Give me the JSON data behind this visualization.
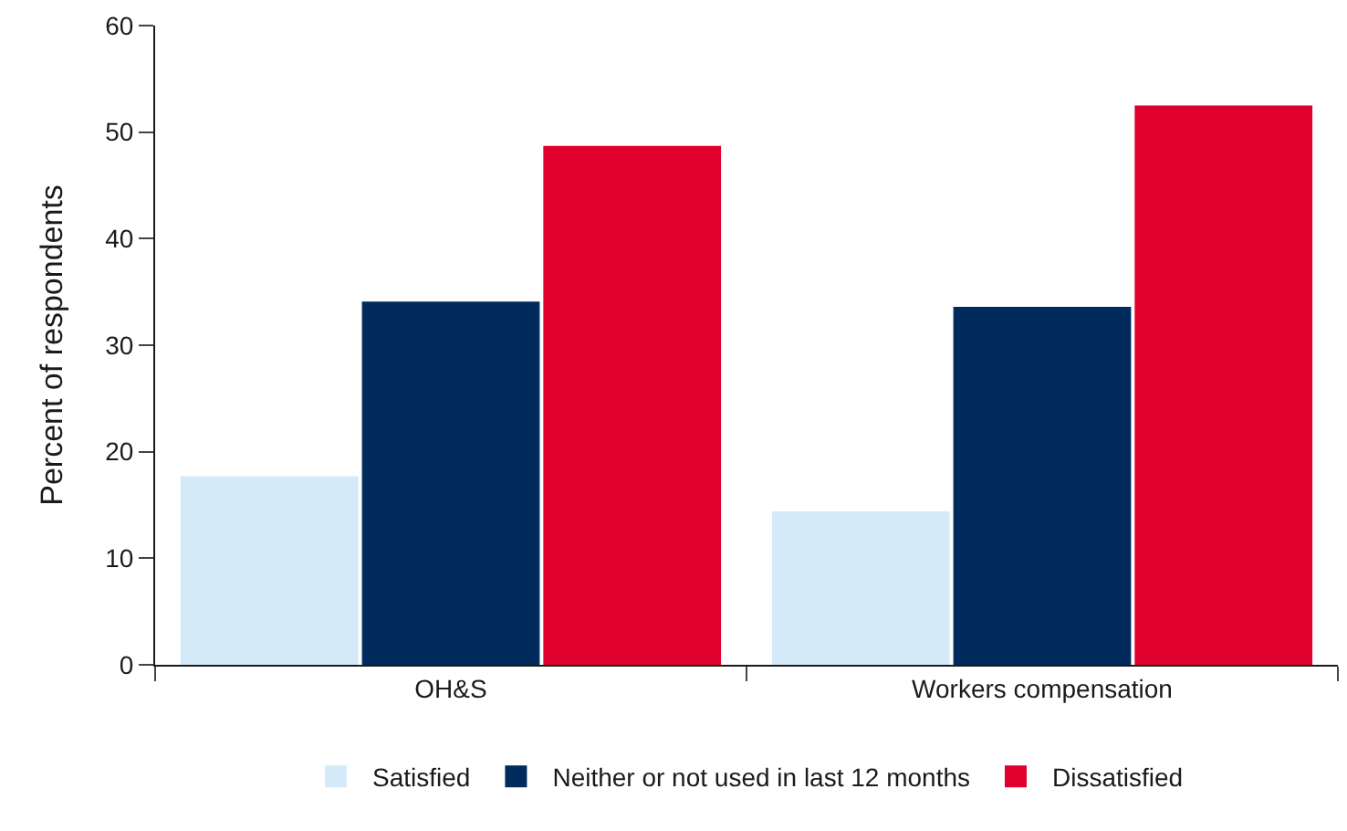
{
  "chart_data": {
    "type": "bar",
    "ylabel": "Percent of respondents",
    "categories": [
      "OH&S",
      "Workers compensation"
    ],
    "series": [
      {
        "name": "Satisfied",
        "color": "#d5eaf8",
        "values": [
          17.7,
          14.4
        ]
      },
      {
        "name": "Neither or not used in last 12 months",
        "color": "#002b5c",
        "values": [
          34.1,
          33.6
        ]
      },
      {
        "name": "Dissatisfied",
        "color": "#e0002d",
        "values": [
          48.7,
          52.5
        ]
      }
    ],
    "ylim": [
      0,
      60
    ],
    "yticks": [
      0,
      10,
      20,
      30,
      40,
      50,
      60
    ],
    "legend": "bottom"
  }
}
